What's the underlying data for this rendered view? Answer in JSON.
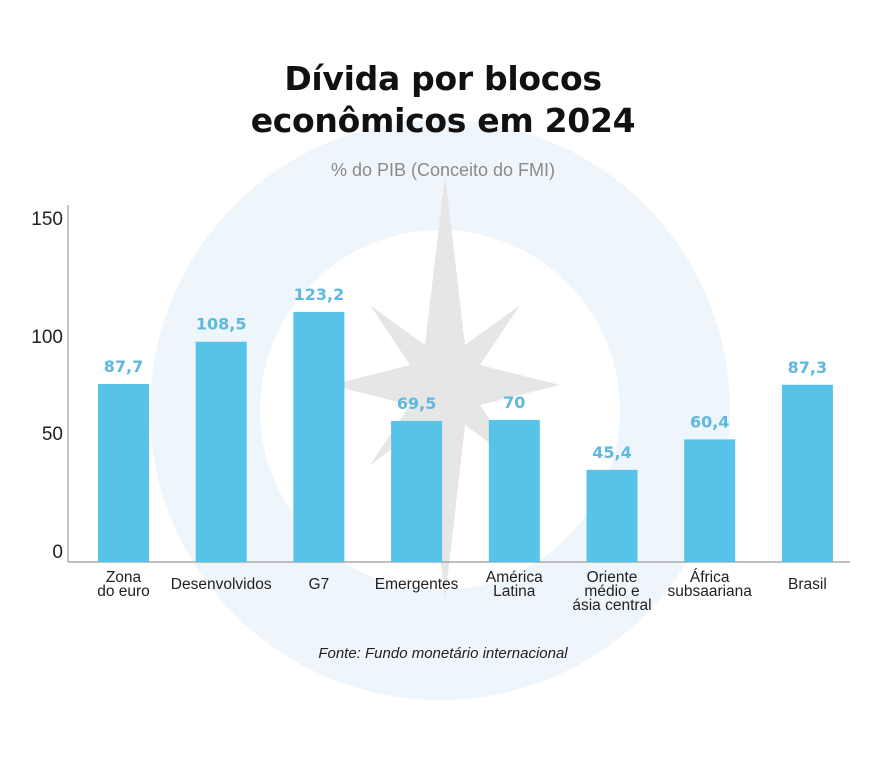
{
  "title_line1": "Dívida por blocos",
  "title_line2": "econômicos em 2024",
  "subtitle": "% do PIB (Conceito do FMI)",
  "source": "Fonte: Fundo monetário internacional",
  "colors": {
    "bar": "#57c3e8",
    "value_label": "#5db9df",
    "axis": "#9a9a9a"
  },
  "chart_data": {
    "type": "bar",
    "title": "Dívida por blocos econômicos em 2024",
    "subtitle": "% do PIB (Conceito do FMI)",
    "xlabel": "",
    "ylabel": "",
    "ylim": [
      0,
      150
    ],
    "yticks": [
      0,
      50,
      100,
      150
    ],
    "grid": false,
    "categories": [
      [
        "Zona",
        "do euro"
      ],
      [
        "Desenvolvidos"
      ],
      [
        "G7"
      ],
      [
        "Emergentes"
      ],
      [
        "América",
        "Latina"
      ],
      [
        "Oriente",
        "médio e",
        "ásia central"
      ],
      [
        "África",
        "subsaariana"
      ],
      [
        "Brasil"
      ]
    ],
    "values": [
      87.7,
      108.5,
      123.2,
      69.5,
      70,
      45.4,
      60.4,
      87.3
    ],
    "value_labels": [
      "87,7",
      "108,5",
      "123,2",
      "69,5",
      "70",
      "45,4",
      "60,4",
      "87,3"
    ]
  }
}
